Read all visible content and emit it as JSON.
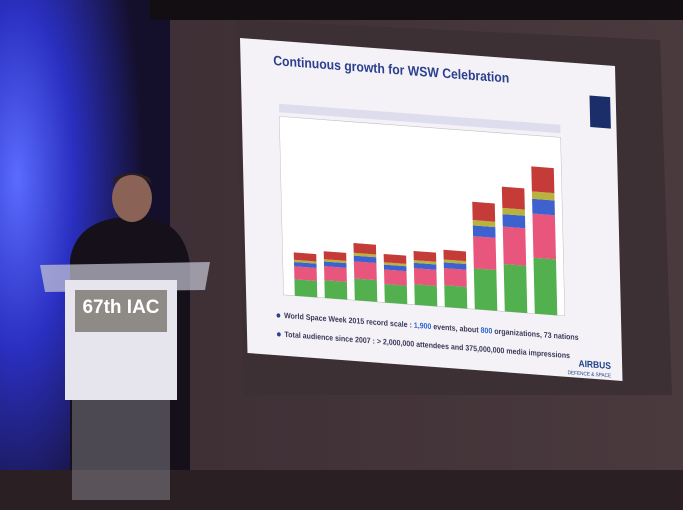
{
  "slide": {
    "title": "Continuous growth for WSW Celebration",
    "bullets": [
      {
        "pre": "World Space Week 2015 record scale : ",
        "events": "1,900",
        "mid": " events, about ",
        "orgs": "800",
        "post": " organizations, 73 nations"
      },
      {
        "text": "Total audience since 2007 : > 2,000,000 attendees and 375,000,000 media impressions"
      }
    ],
    "logo": {
      "name": "AIRBUS",
      "sub": "DEFENCE & SPACE"
    }
  },
  "podium": {
    "sign": "67th IAC"
  }
}
